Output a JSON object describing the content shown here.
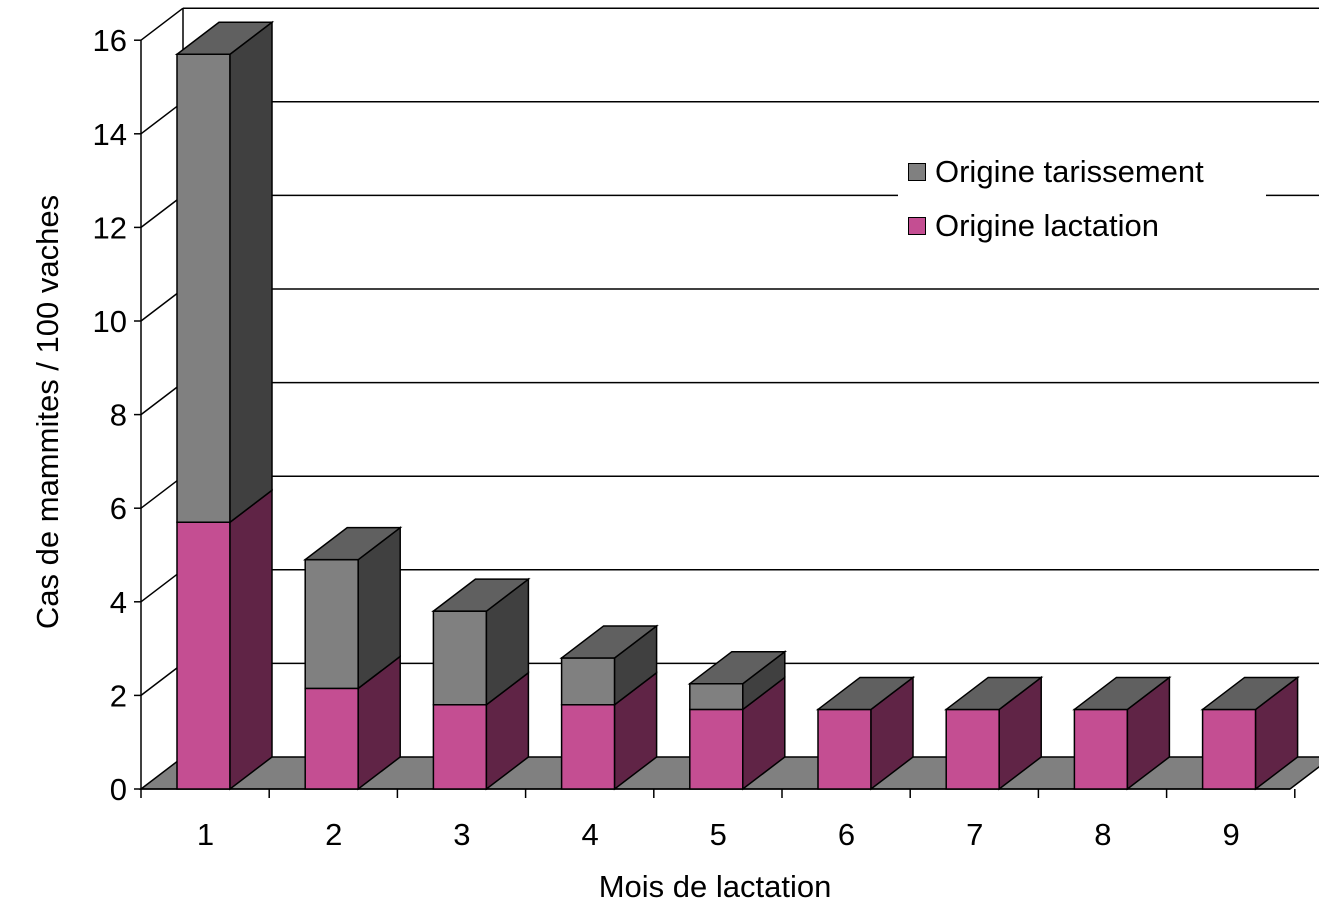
{
  "chart_data": {
    "type": "bar",
    "stacked": true,
    "three_d": true,
    "title": "",
    "xlabel": "Mois de lactation",
    "ylabel": "Cas de mammites / 100 vaches",
    "categories": [
      "1",
      "2",
      "3",
      "4",
      "5",
      "6",
      "7",
      "8",
      "9"
    ],
    "ylim": [
      0,
      16
    ],
    "yticks": [
      "0",
      "2",
      "4",
      "6",
      "8",
      "10",
      "12",
      "14",
      "16"
    ],
    "grid": true,
    "legend_position": "top-right",
    "series": [
      {
        "name": "Origine lactation",
        "values": [
          5.7,
          2.15,
          1.8,
          1.8,
          1.7,
          1.7,
          1.7,
          1.7,
          1.7
        ],
        "color": "#c44e92"
      },
      {
        "name": "Origine tarissement",
        "values": [
          10.0,
          2.75,
          2.0,
          1.0,
          0.55,
          0,
          0,
          0,
          0
        ],
        "color": "#808080"
      }
    ]
  },
  "colors": {
    "lactation_front": "#c44e92",
    "lactation_side": "#602446",
    "tarissement_front": "#808080",
    "tarissement_side": "#404040",
    "top": "#606060",
    "floor": "#808080"
  }
}
